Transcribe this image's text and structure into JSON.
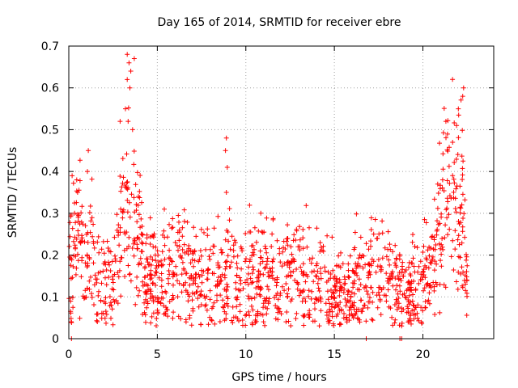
{
  "chart_data": {
    "type": "scatter",
    "title": "Day 165 of 2014, SRMTID for receiver ebre",
    "xlabel": "GPS time / hours",
    "ylabel": "SRMTID / TECUs",
    "xlim": [
      0,
      24
    ],
    "ylim": [
      0,
      0.7
    ],
    "xticks": [
      0,
      5,
      10,
      15,
      20
    ],
    "yticks": [
      0,
      0.1,
      0.2,
      0.3,
      0.4,
      0.5,
      0.6,
      0.7
    ],
    "xtick_labels": [
      "0",
      "5",
      "10",
      "15",
      "20"
    ],
    "ytick_labels": [
      "0",
      "0.1",
      "0.2",
      "0.3",
      "0.4",
      "0.5",
      "0.6",
      "0.7"
    ],
    "grid": true,
    "marker": "plus",
    "color": "#ff0000",
    "series": [
      {
        "name": "SRMTID",
        "profile_x": [
          0.0,
          0.3,
          0.6,
          1.0,
          1.5,
          2.0,
          2.5,
          2.9,
          3.2,
          3.5,
          3.8,
          4.2,
          5.0,
          6.0,
          7.0,
          8.0,
          8.5,
          8.8,
          9.2,
          10.0,
          11.0,
          12.0,
          13.0,
          14.0,
          15.0,
          15.8,
          16.5,
          17.5,
          18.5,
          19.0,
          19.5,
          20.0,
          20.5,
          21.0,
          21.5,
          22.0,
          22.3,
          22.5
        ],
        "profile_mean": [
          0.17,
          0.22,
          0.24,
          0.2,
          0.15,
          0.13,
          0.15,
          0.25,
          0.35,
          0.33,
          0.25,
          0.17,
          0.14,
          0.16,
          0.16,
          0.13,
          0.14,
          0.15,
          0.17,
          0.14,
          0.15,
          0.15,
          0.15,
          0.13,
          0.12,
          0.1,
          0.14,
          0.15,
          0.13,
          0.1,
          0.11,
          0.14,
          0.18,
          0.28,
          0.36,
          0.33,
          0.25,
          0.1
        ],
        "spikes": [
          {
            "x": 3.3,
            "y": 0.68
          },
          {
            "x": 3.4,
            "y": 0.66
          },
          {
            "x": 3.5,
            "y": 0.64
          },
          {
            "x": 3.7,
            "y": 0.67
          },
          {
            "x": 3.3,
            "y": 0.62
          },
          {
            "x": 3.45,
            "y": 0.6
          },
          {
            "x": 3.2,
            "y": 0.55
          },
          {
            "x": 3.35,
            "y": 0.52
          },
          {
            "x": 2.9,
            "y": 0.52
          },
          {
            "x": 3.6,
            "y": 0.5
          },
          {
            "x": 1.1,
            "y": 0.45
          },
          {
            "x": 1.05,
            "y": 0.4
          },
          {
            "x": 0.45,
            "y": 0.38
          },
          {
            "x": 0.5,
            "y": 0.35
          },
          {
            "x": 8.9,
            "y": 0.48
          },
          {
            "x": 8.85,
            "y": 0.45
          },
          {
            "x": 8.95,
            "y": 0.41
          },
          {
            "x": 8.9,
            "y": 0.35
          },
          {
            "x": 22.3,
            "y": 0.6
          },
          {
            "x": 22.25,
            "y": 0.58
          },
          {
            "x": 21.3,
            "y": 0.52
          },
          {
            "x": 21.9,
            "y": 0.51
          },
          {
            "x": 22.0,
            "y": 0.55
          },
          {
            "x": 0.15,
            "y": 0.0
          },
          {
            "x": 16.8,
            "y": 0.0
          },
          {
            "x": 18.7,
            "y": 0.0
          },
          {
            "x": 18.8,
            "y": 0.0
          }
        ]
      }
    ]
  }
}
